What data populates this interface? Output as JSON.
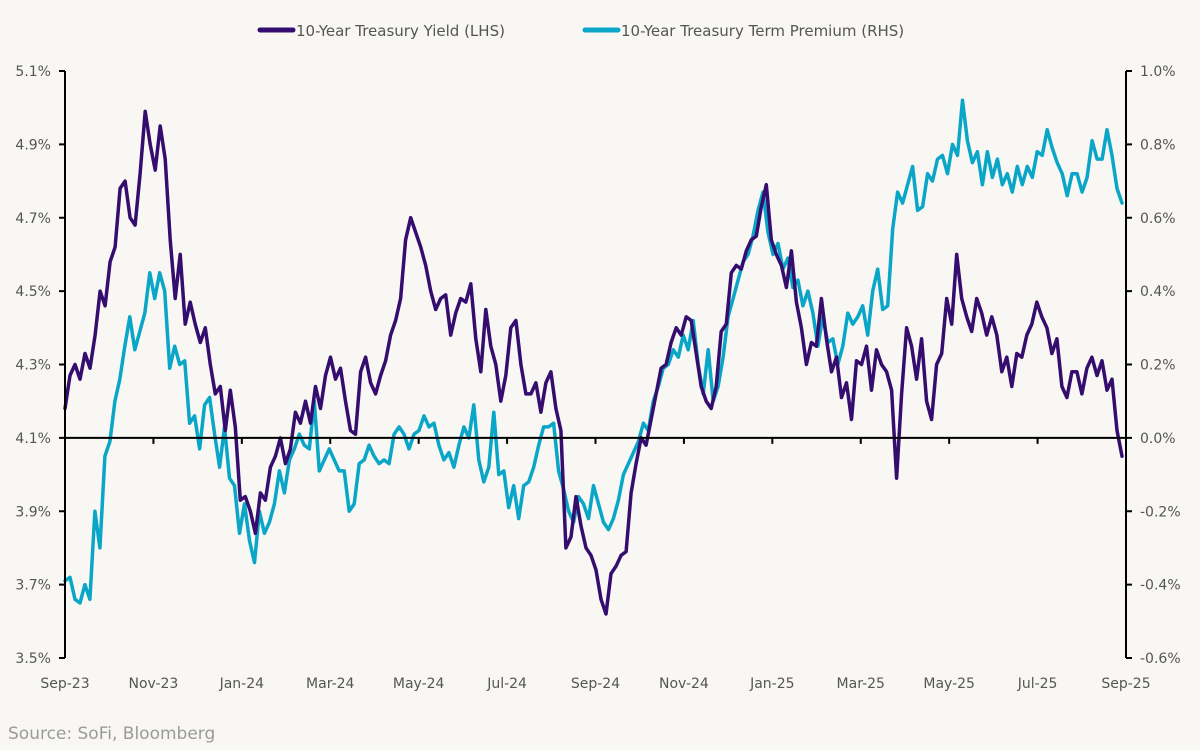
{
  "chart_data": {
    "type": "line",
    "title": "",
    "legend_position": "top-center",
    "source": "Source: SoFi, Bloomberg",
    "x_tick_labels": [
      "Sep-23",
      "Nov-23",
      "Jan-24",
      "Mar-24",
      "May-24",
      "Jul-24",
      "Sep-24",
      "Nov-24",
      "Jan-25",
      "Mar-25",
      "May-25",
      "Jul-25",
      "Sep-25"
    ],
    "x_range_months": [
      0,
      24
    ],
    "left_axis": {
      "label": "LHS",
      "ylim": [
        3.5,
        5.1
      ],
      "ticks": [
        3.5,
        3.7,
        3.9,
        4.1,
        4.3,
        4.5,
        4.7,
        4.9,
        5.1
      ],
      "tick_labels": [
        "3.5%",
        "3.7%",
        "3.9%",
        "4.1%",
        "4.3%",
        "4.5%",
        "4.7%",
        "4.9%",
        "5.1%"
      ]
    },
    "right_axis": {
      "label": "RHS",
      "ylim": [
        -0.6,
        1.0
      ],
      "ticks": [
        -0.6,
        -0.4,
        -0.2,
        0.0,
        0.2,
        0.4,
        0.6,
        0.8,
        1.0
      ],
      "tick_labels": [
        "-0.6%",
        "-0.4%",
        "-0.2%",
        "0.0%",
        "0.2%",
        "0.4%",
        "0.6%",
        "0.8%",
        "1.0%"
      ]
    },
    "zero_line_rhs": 0.0,
    "grid": false,
    "series": [
      {
        "name": "10-Year Treasury Yield (LHS)",
        "axis": "left",
        "color": "#340d6e",
        "values": [
          4.18,
          4.27,
          4.3,
          4.26,
          4.33,
          4.29,
          4.38,
          4.5,
          4.46,
          4.58,
          4.62,
          4.78,
          4.8,
          4.7,
          4.68,
          4.82,
          4.99,
          4.9,
          4.83,
          4.95,
          4.86,
          4.64,
          4.48,
          4.6,
          4.41,
          4.47,
          4.41,
          4.36,
          4.4,
          4.3,
          4.22,
          4.24,
          4.12,
          4.23,
          4.13,
          3.93,
          3.94,
          3.9,
          3.84,
          3.95,
          3.93,
          4.02,
          4.05,
          4.1,
          4.03,
          4.07,
          4.17,
          4.14,
          4.2,
          4.14,
          4.24,
          4.18,
          4.27,
          4.32,
          4.26,
          4.29,
          4.2,
          4.12,
          4.11,
          4.28,
          4.32,
          4.25,
          4.22,
          4.27,
          4.31,
          4.38,
          4.42,
          4.48,
          4.64,
          4.7,
          4.66,
          4.62,
          4.57,
          4.5,
          4.45,
          4.48,
          4.49,
          4.38,
          4.44,
          4.48,
          4.47,
          4.52,
          4.37,
          4.28,
          4.45,
          4.35,
          4.3,
          4.2,
          4.27,
          4.4,
          4.42,
          4.3,
          4.22,
          4.22,
          4.25,
          4.17,
          4.25,
          4.28,
          4.18,
          4.12,
          3.8,
          3.83,
          3.94,
          3.86,
          3.8,
          3.78,
          3.74,
          3.66,
          3.62,
          3.73,
          3.75,
          3.78,
          3.79,
          3.95,
          4.03,
          4.1,
          4.08,
          4.15,
          4.22,
          4.29,
          4.3,
          4.36,
          4.4,
          4.38,
          4.43,
          4.42,
          4.33,
          4.24,
          4.2,
          4.18,
          4.24,
          4.39,
          4.41,
          4.55,
          4.57,
          4.56,
          4.61,
          4.64,
          4.65,
          4.73,
          4.79,
          4.64,
          4.6,
          4.57,
          4.51,
          4.61,
          4.47,
          4.4,
          4.3,
          4.36,
          4.35,
          4.48,
          4.37,
          4.28,
          4.32,
          4.21,
          4.25,
          4.15,
          4.31,
          4.3,
          4.35,
          4.23,
          4.34,
          4.3,
          4.28,
          4.23,
          3.99,
          4.22,
          4.4,
          4.35,
          4.26,
          4.37,
          4.2,
          4.15,
          4.3,
          4.33,
          4.48,
          4.41,
          4.6,
          4.48,
          4.43,
          4.39,
          4.48,
          4.44,
          4.38,
          4.43,
          4.38,
          4.28,
          4.32,
          4.24,
          4.33,
          4.32,
          4.38,
          4.41,
          4.47,
          4.43,
          4.4,
          4.33,
          4.37,
          4.24,
          4.21,
          4.28,
          4.28,
          4.22,
          4.29,
          4.32,
          4.27,
          4.31,
          4.23,
          4.26,
          4.12,
          4.05
        ]
      },
      {
        "name": "10-Year Treasury Term Premium (RHS)",
        "axis": "right",
        "color": "#0aa6c8",
        "values": [
          -0.39,
          -0.38,
          -0.44,
          -0.45,
          -0.4,
          -0.44,
          -0.2,
          -0.3,
          -0.05,
          -0.01,
          0.1,
          0.16,
          0.25,
          0.33,
          0.24,
          0.29,
          0.34,
          0.45,
          0.38,
          0.45,
          0.4,
          0.19,
          0.25,
          0.2,
          0.21,
          0.04,
          0.06,
          -0.03,
          0.09,
          0.11,
          0.01,
          -0.08,
          0.03,
          -0.11,
          -0.13,
          -0.26,
          -0.18,
          -0.28,
          -0.34,
          -0.2,
          -0.26,
          -0.23,
          -0.18,
          -0.09,
          -0.15,
          -0.06,
          -0.03,
          0.01,
          -0.02,
          -0.03,
          0.1,
          -0.09,
          -0.06,
          -0.03,
          -0.06,
          -0.09,
          -0.09,
          -0.2,
          -0.18,
          -0.07,
          -0.06,
          -0.02,
          -0.05,
          -0.07,
          -0.06,
          -0.07,
          0.01,
          0.03,
          0.01,
          -0.03,
          0.01,
          0.02,
          0.06,
          0.03,
          0.04,
          -0.02,
          -0.06,
          -0.04,
          -0.08,
          -0.02,
          0.03,
          0.0,
          0.09,
          -0.06,
          -0.12,
          -0.08,
          0.07,
          -0.1,
          -0.09,
          -0.19,
          -0.13,
          -0.22,
          -0.13,
          -0.12,
          -0.08,
          -0.02,
          0.03,
          0.03,
          0.04,
          -0.09,
          -0.14,
          -0.2,
          -0.23,
          -0.16,
          -0.18,
          -0.22,
          -0.13,
          -0.18,
          -0.23,
          -0.25,
          -0.22,
          -0.17,
          -0.1,
          -0.07,
          -0.04,
          -0.01,
          0.04,
          0.02,
          0.1,
          0.14,
          0.19,
          0.2,
          0.24,
          0.22,
          0.28,
          0.24,
          0.32,
          0.2,
          0.12,
          0.24,
          0.1,
          0.14,
          0.22,
          0.33,
          0.38,
          0.43,
          0.48,
          0.5,
          0.55,
          0.62,
          0.67,
          0.56,
          0.5,
          0.53,
          0.46,
          0.49,
          0.41,
          0.43,
          0.36,
          0.4,
          0.34,
          0.25,
          0.33,
          0.26,
          0.27,
          0.2,
          0.25,
          0.34,
          0.31,
          0.33,
          0.36,
          0.28,
          0.4,
          0.46,
          0.35,
          0.36,
          0.57,
          0.67,
          0.64,
          0.69,
          0.74,
          0.62,
          0.63,
          0.72,
          0.7,
          0.76,
          0.77,
          0.72,
          0.8,
          0.77,
          0.92,
          0.81,
          0.75,
          0.78,
          0.69,
          0.78,
          0.71,
          0.76,
          0.69,
          0.72,
          0.67,
          0.74,
          0.69,
          0.74,
          0.71,
          0.78,
          0.77,
          0.84,
          0.79,
          0.75,
          0.72,
          0.66,
          0.72,
          0.72,
          0.67,
          0.71,
          0.81,
          0.76,
          0.76,
          0.84,
          0.77,
          0.68,
          0.64
        ]
      }
    ]
  }
}
